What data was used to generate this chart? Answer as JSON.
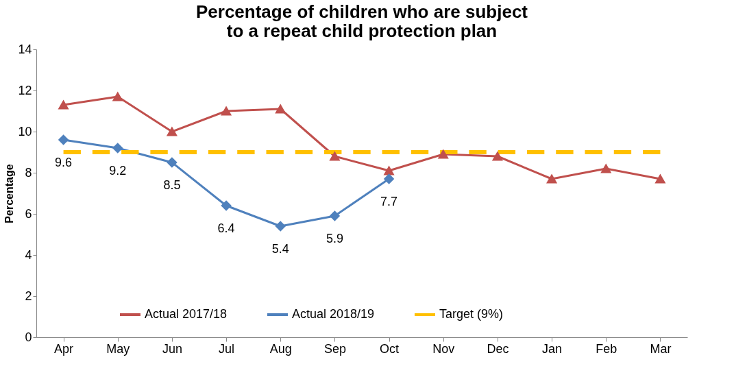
{
  "chart_data": {
    "type": "line",
    "title": "Percentage of children who are subject to a repeat child protection plan",
    "ylabel": "Percentage",
    "categories": [
      "Apr",
      "May",
      "Jun",
      "Jul",
      "Aug",
      "Sep",
      "Oct",
      "Nov",
      "Dec",
      "Jan",
      "Feb",
      "Mar"
    ],
    "series": [
      {
        "name": "Actual 2017/18",
        "color": "#c0504d",
        "marker": "triangle",
        "line_style": "solid",
        "values": [
          11.3,
          11.7,
          10.0,
          11.0,
          11.1,
          8.8,
          8.1,
          8.9,
          8.8,
          7.7,
          8.2,
          7.7
        ]
      },
      {
        "name": "Actual 2018/19",
        "color": "#4f81bd",
        "marker": "diamond",
        "line_style": "solid",
        "values": [
          9.6,
          9.2,
          8.5,
          6.4,
          5.4,
          5.9,
          7.7,
          null,
          null,
          null,
          null,
          null
        ],
        "value_labels": [
          "9.6",
          "9.2",
          "8.5",
          "6.4",
          "5.4",
          "5.9",
          "7.7",
          null,
          null,
          null,
          null,
          null
        ]
      },
      {
        "name": "Target (9%)",
        "color": "#ffc000",
        "marker": "none",
        "line_style": "dashed",
        "values": [
          9,
          9,
          9,
          9,
          9,
          9,
          9,
          9,
          9,
          9,
          9,
          9
        ]
      }
    ],
    "ylim": [
      0,
      14
    ],
    "yticks": [
      0,
      2,
      4,
      6,
      8,
      10,
      12,
      14
    ],
    "grid": false,
    "legend": "bottom"
  }
}
